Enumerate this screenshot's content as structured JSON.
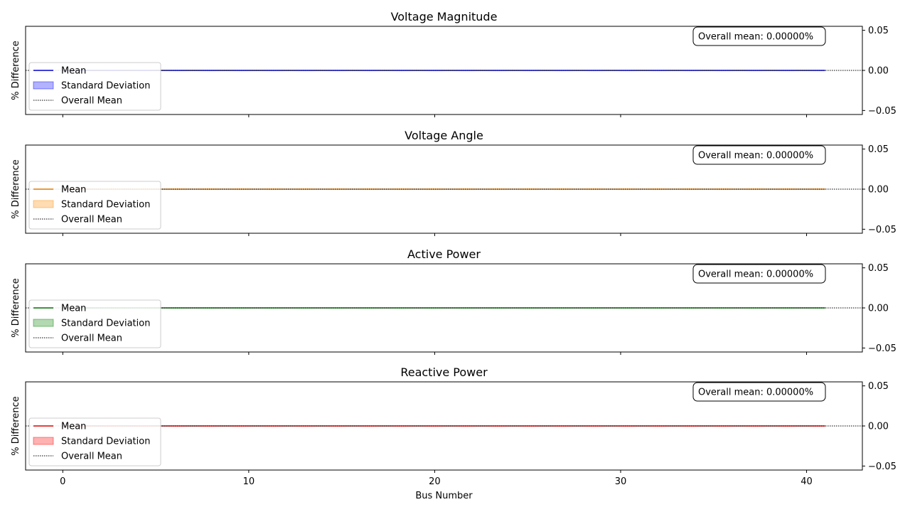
{
  "figure": {
    "xlabel": "Bus Number",
    "ylabel": "% Difference"
  },
  "chart_data": [
    {
      "type": "line",
      "title": "Voltage Magnitude",
      "xlabel": "",
      "ylabel": "% Difference",
      "xlim": [
        -2,
        43
      ],
      "ylim": [
        -0.055,
        0.055
      ],
      "xticks": [
        0,
        10,
        20,
        30,
        40
      ],
      "yticks": [
        0.05,
        0.0,
        -0.05
      ],
      "ytick_labels": [
        "0.05",
        "0.00",
        "−0.05"
      ],
      "yaxis_side": "right",
      "color": "#0000ff",
      "mean_line_color": "#0000cc",
      "series": [
        {
          "name": "Mean",
          "x": [
            0,
            41
          ],
          "values": [
            0,
            0
          ],
          "style": "solid"
        },
        {
          "name": "Standard Deviation",
          "x": [
            0,
            41
          ],
          "lower": [
            0,
            0
          ],
          "upper": [
            0,
            0
          ],
          "style": "band"
        }
      ],
      "overall_mean": {
        "name": "Overall Mean",
        "value": 0.0,
        "style": "dotted"
      },
      "annotation": "Overall mean: 0.00000%",
      "legend": {
        "placement": "center-left",
        "entries": [
          "Mean",
          "Standard Deviation",
          "Overall Mean"
        ]
      }
    },
    {
      "type": "line",
      "title": "Voltage Angle",
      "xlabel": "",
      "ylabel": "% Difference",
      "xlim": [
        -2,
        43
      ],
      "ylim": [
        -0.055,
        0.055
      ],
      "xticks": [
        0,
        10,
        20,
        30,
        40
      ],
      "yticks": [
        0.05,
        0.0,
        -0.05
      ],
      "ytick_labels": [
        "0.05",
        "0.00",
        "−0.05"
      ],
      "yaxis_side": "right",
      "color": "#ff8c00",
      "mean_line_color": "#e07b00",
      "series": [
        {
          "name": "Mean",
          "x": [
            0,
            41
          ],
          "values": [
            0,
            0
          ],
          "style": "solid"
        },
        {
          "name": "Standard Deviation",
          "x": [
            0,
            41
          ],
          "lower": [
            0,
            0
          ],
          "upper": [
            0,
            0
          ],
          "style": "band"
        }
      ],
      "overall_mean": {
        "name": "Overall Mean",
        "value": 0.0,
        "style": "dotted"
      },
      "annotation": "Overall mean: 0.00000%",
      "legend": {
        "placement": "center-left",
        "entries": [
          "Mean",
          "Standard Deviation",
          "Overall Mean"
        ]
      }
    },
    {
      "type": "line",
      "title": "Active Power",
      "xlabel": "",
      "ylabel": "% Difference",
      "xlim": [
        -2,
        43
      ],
      "ylim": [
        -0.055,
        0.055
      ],
      "xticks": [
        0,
        10,
        20,
        30,
        40
      ],
      "yticks": [
        0.05,
        0.0,
        -0.05
      ],
      "ytick_labels": [
        "0.05",
        "0.00",
        "−0.05"
      ],
      "yaxis_side": "right",
      "color": "#008000",
      "mean_line_color": "#007000",
      "series": [
        {
          "name": "Mean",
          "x": [
            0,
            41
          ],
          "values": [
            0,
            0
          ],
          "style": "solid"
        },
        {
          "name": "Standard Deviation",
          "x": [
            0,
            41
          ],
          "lower": [
            0,
            0
          ],
          "upper": [
            0,
            0
          ],
          "style": "band"
        }
      ],
      "overall_mean": {
        "name": "Overall Mean",
        "value": 0.0,
        "style": "dotted"
      },
      "annotation": "Overall mean: 0.00000%",
      "legend": {
        "placement": "center-left",
        "entries": [
          "Mean",
          "Standard Deviation",
          "Overall Mean"
        ]
      }
    },
    {
      "type": "line",
      "title": "Reactive Power",
      "xlabel": "Bus Number",
      "ylabel": "% Difference",
      "xlim": [
        -2,
        43
      ],
      "ylim": [
        -0.055,
        0.055
      ],
      "xticks": [
        0,
        10,
        20,
        30,
        40
      ],
      "xtick_labels": [
        "0",
        "10",
        "20",
        "30",
        "40"
      ],
      "yticks": [
        0.05,
        0.0,
        -0.05
      ],
      "ytick_labels": [
        "0.05",
        "0.00",
        "−0.05"
      ],
      "yaxis_side": "right",
      "color": "#ff0000",
      "mean_line_color": "#dd0000",
      "series": [
        {
          "name": "Mean",
          "x": [
            0,
            41
          ],
          "values": [
            0,
            0
          ],
          "style": "solid"
        },
        {
          "name": "Standard Deviation",
          "x": [
            0,
            41
          ],
          "lower": [
            0,
            0
          ],
          "upper": [
            0,
            0
          ],
          "style": "band"
        }
      ],
      "overall_mean": {
        "name": "Overall Mean",
        "value": 0.0,
        "style": "dotted"
      },
      "annotation": "Overall mean: 0.00000%",
      "legend": {
        "placement": "center-left",
        "entries": [
          "Mean",
          "Standard Deviation",
          "Overall Mean"
        ]
      }
    }
  ]
}
